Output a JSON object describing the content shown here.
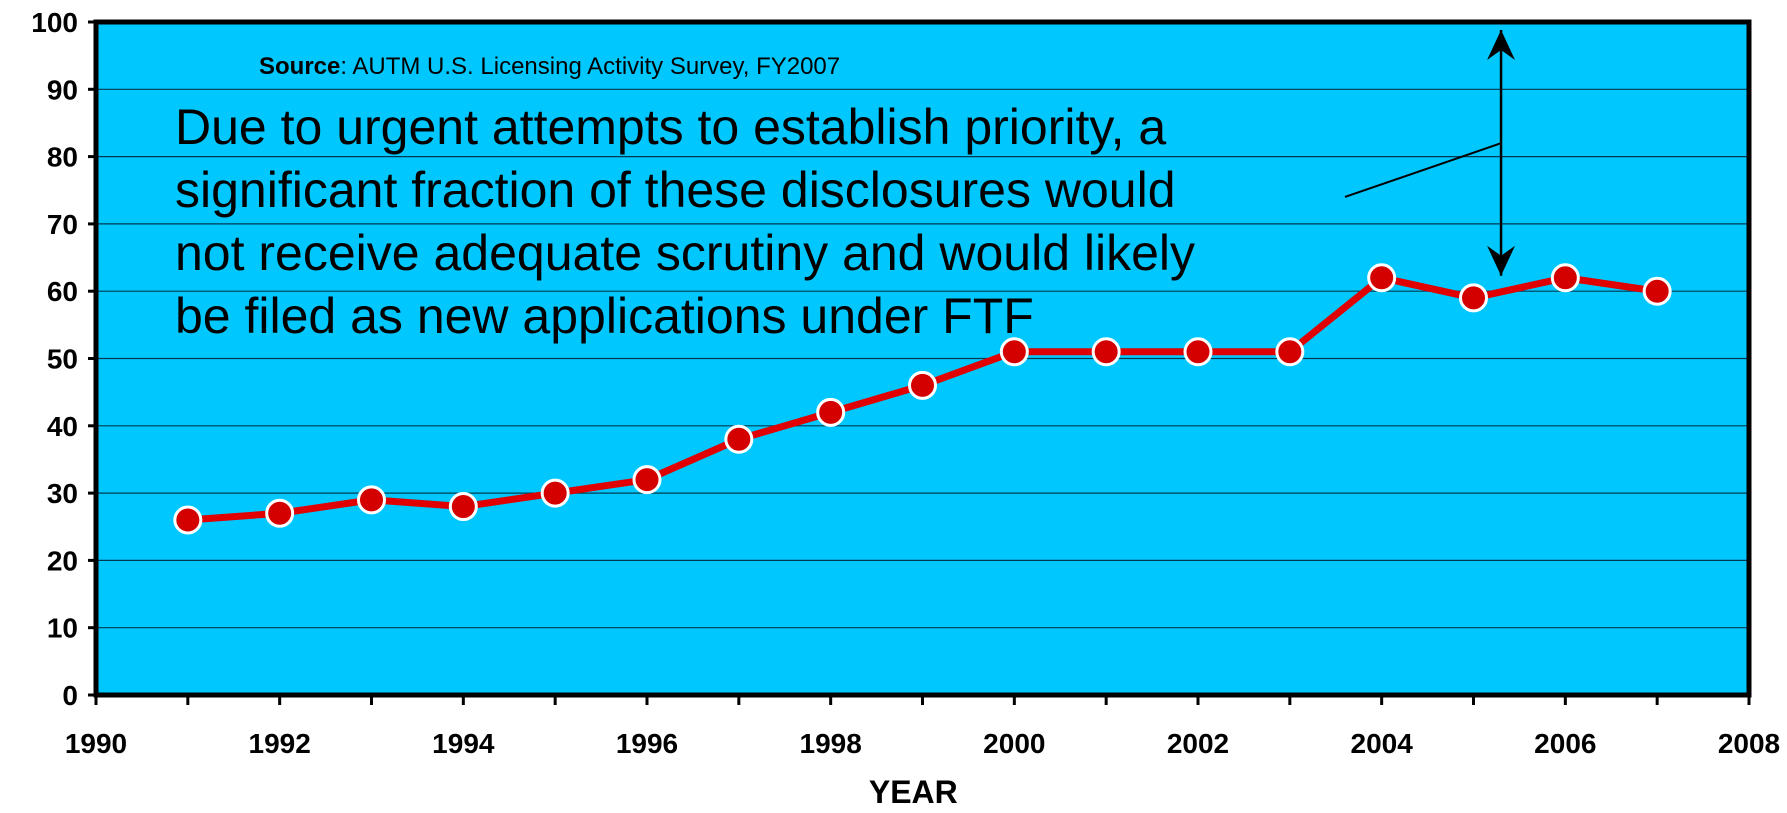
{
  "chart_data": {
    "type": "line",
    "title": "",
    "xlabel": "YEAR",
    "ylabel": "",
    "xlim": [
      1990,
      2008
    ],
    "ylim": [
      0,
      100
    ],
    "x_ticks": [
      1990,
      1992,
      1994,
      1996,
      1998,
      2000,
      2002,
      2004,
      2006,
      2008
    ],
    "y_ticks": [
      0,
      10,
      20,
      30,
      40,
      50,
      60,
      70,
      80,
      90,
      100
    ],
    "grid": true,
    "series": [
      {
        "color": "#e00000",
        "marker_color": "#d40000",
        "x": [
          1991,
          1992,
          1993,
          1994,
          1995,
          1996,
          1997,
          1998,
          1999,
          2000,
          2001,
          2002,
          2003,
          2004,
          2005,
          2006,
          2007
        ],
        "values": [
          26,
          27,
          29,
          28,
          30,
          32,
          38,
          42,
          46,
          51,
          51,
          51,
          51,
          62,
          59,
          62,
          60
        ]
      }
    ],
    "source_label": "Source",
    "source_text": ": AUTM U.S. Licensing Activity Survey, FY2007",
    "annotation_lines": [
      "Due to urgent attempts to establish priority, a",
      "significant fraction of these disclosures would",
      "not receive adequate scrutiny and would likely",
      "be filed as new applications under FTF"
    ],
    "arrow": {
      "x": 2005.3,
      "y_top": 100,
      "y_bottom": 62
    },
    "pointer_line": {
      "x1": 2003.6,
      "y1": 74,
      "x2": 2005.3,
      "y2": 82
    }
  },
  "colors": {
    "plot_background": "#00c8ff",
    "grid": "#003a52",
    "axis": "#000000",
    "line": "#e00000"
  }
}
